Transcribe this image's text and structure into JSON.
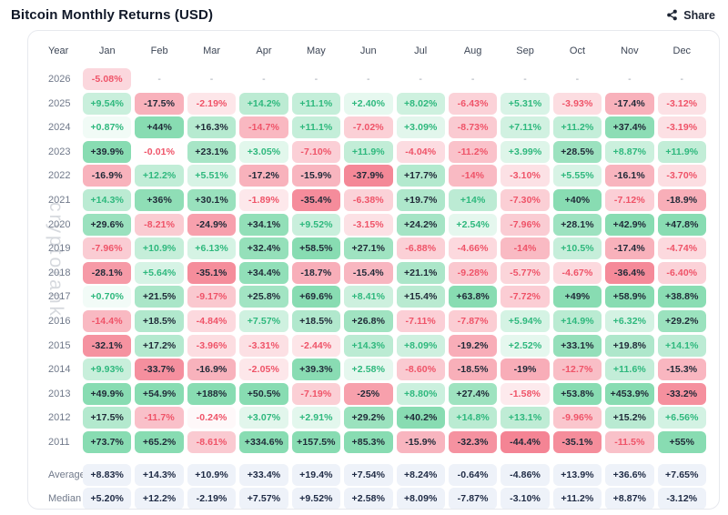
{
  "header": {
    "title": "Bitcoin Monthly Returns (USD)",
    "share_label": "Share"
  },
  "watermark": "cryptorank",
  "chart_data": {
    "type": "heatmap",
    "title": "Bitcoin Monthly Returns (USD)",
    "columns": [
      "Year",
      "Jan",
      "Feb",
      "Mar",
      "Apr",
      "May",
      "Jun",
      "Jul",
      "Aug",
      "Sep",
      "Oct",
      "Nov",
      "Dec"
    ],
    "rows": [
      {
        "year": "2026",
        "values": [
          "-5.08%",
          "-",
          "-",
          "-",
          "-",
          "-",
          "-",
          "-",
          "-",
          "-",
          "-",
          "-"
        ]
      },
      {
        "year": "2025",
        "values": [
          "+9.54%",
          "-17.5%",
          "-2.19%",
          "+14.2%",
          "+11.1%",
          "+2.40%",
          "+8.02%",
          "-6.43%",
          "+5.31%",
          "-3.93%",
          "-17.4%",
          "-3.12%"
        ]
      },
      {
        "year": "2024",
        "values": [
          "+0.87%",
          "+44%",
          "+16.3%",
          "-14.7%",
          "+11.1%",
          "-7.02%",
          "+3.09%",
          "-8.73%",
          "+7.11%",
          "+11.2%",
          "+37.4%",
          "-3.19%"
        ]
      },
      {
        "year": "2023",
        "values": [
          "+39.9%",
          "-0.01%",
          "+23.1%",
          "+3.05%",
          "-7.10%",
          "+11.9%",
          "-4.04%",
          "-11.2%",
          "+3.99%",
          "+28.5%",
          "+8.87%",
          "+11.9%"
        ]
      },
      {
        "year": "2022",
        "values": [
          "-16.9%",
          "+12.2%",
          "+5.51%",
          "-17.2%",
          "-15.9%",
          "-37.9%",
          "+17.7%",
          "-14%",
          "-3.10%",
          "+5.55%",
          "-16.1%",
          "-3.70%"
        ]
      },
      {
        "year": "2021",
        "values": [
          "+14.3%",
          "+36%",
          "+30.1%",
          "-1.89%",
          "-35.4%",
          "-6.38%",
          "+19.7%",
          "+14%",
          "-7.30%",
          "+40%",
          "-7.12%",
          "-18.9%"
        ]
      },
      {
        "year": "2020",
        "values": [
          "+29.6%",
          "-8.21%",
          "-24.9%",
          "+34.1%",
          "+9.52%",
          "-3.15%",
          "+24.2%",
          "+2.54%",
          "-7.96%",
          "+28.1%",
          "+42.9%",
          "+47.8%"
        ]
      },
      {
        "year": "2019",
        "values": [
          "-7.96%",
          "+10.9%",
          "+6.13%",
          "+32.4%",
          "+58.5%",
          "+27.1%",
          "-6.88%",
          "-4.66%",
          "-14%",
          "+10.5%",
          "-17.4%",
          "-4.74%"
        ]
      },
      {
        "year": "2018",
        "values": [
          "-28.1%",
          "+5.64%",
          "-35.1%",
          "+34.4%",
          "-18.7%",
          "-15.4%",
          "+21.1%",
          "-9.28%",
          "-5.77%",
          "-4.67%",
          "-36.4%",
          "-6.40%"
        ]
      },
      {
        "year": "2017",
        "values": [
          "+0.70%",
          "+21.5%",
          "-9.17%",
          "+25.8%",
          "+69.6%",
          "+8.41%",
          "+15.4%",
          "+63.8%",
          "-7.72%",
          "+49%",
          "+58.9%",
          "+38.8%"
        ]
      },
      {
        "year": "2016",
        "values": [
          "-14.4%",
          "+18.5%",
          "-4.84%",
          "+7.57%",
          "+18.5%",
          "+26.8%",
          "-7.11%",
          "-7.87%",
          "+5.94%",
          "+14.9%",
          "+6.32%",
          "+29.2%"
        ]
      },
      {
        "year": "2015",
        "values": [
          "-32.1%",
          "+17.2%",
          "-3.96%",
          "-3.31%",
          "-2.44%",
          "+14.3%",
          "+8.09%",
          "-19.2%",
          "+2.52%",
          "+33.1%",
          "+19.8%",
          "+14.1%"
        ]
      },
      {
        "year": "2014",
        "values": [
          "+9.93%",
          "-33.7%",
          "-16.9%",
          "-2.05%",
          "+39.3%",
          "+2.58%",
          "-8.60%",
          "-18.5%",
          "-19%",
          "-12.7%",
          "+11.6%",
          "-15.3%"
        ]
      },
      {
        "year": "2013",
        "values": [
          "+49.9%",
          "+54.9%",
          "+188%",
          "+50.5%",
          "-7.19%",
          "-25%",
          "+8.80%",
          "+27.4%",
          "-1.58%",
          "+53.8%",
          "+453.9%",
          "-33.2%"
        ]
      },
      {
        "year": "2012",
        "values": [
          "+17.5%",
          "-11.7%",
          "-0.24%",
          "+3.07%",
          "+2.91%",
          "+29.2%",
          "+40.2%",
          "+14.8%",
          "+13.1%",
          "-9.96%",
          "+15.2%",
          "+6.56%"
        ]
      },
      {
        "year": "2011",
        "values": [
          "+73.7%",
          "+65.2%",
          "-8.61%",
          "+334.6%",
          "+157.5%",
          "+85.3%",
          "-15.9%",
          "-32.3%",
          "-44.4%",
          "-35.1%",
          "-11.5%",
          "+55%"
        ]
      }
    ],
    "summary_rows": [
      {
        "label": "Average",
        "values": [
          "+8.83%",
          "+14.3%",
          "+10.9%",
          "+33.4%",
          "+19.4%",
          "+7.54%",
          "+8.24%",
          "-0.64%",
          "-4.86%",
          "+13.9%",
          "+36.6%",
          "+7.65%"
        ]
      },
      {
        "label": "Median",
        "values": [
          "+5.20%",
          "+12.2%",
          "-2.19%",
          "+7.57%",
          "+9.52%",
          "+2.58%",
          "+8.09%",
          "-7.87%",
          "-3.10%",
          "+11.2%",
          "+8.87%",
          "-3.12%"
        ]
      }
    ]
  },
  "colors": {
    "positive_max_bg": "#88dcb2",
    "negative_max_bg": "#f48494",
    "positive_text": "#2eb87d",
    "negative_text": "#ef5368",
    "dark_text": "#1f2937",
    "summary_bg": "#eef2f9",
    "summary_text": "#1e2a44",
    "dash_text": "#9aa1ac",
    "header_text": "#3d4656",
    "year_text": "#70798a"
  }
}
